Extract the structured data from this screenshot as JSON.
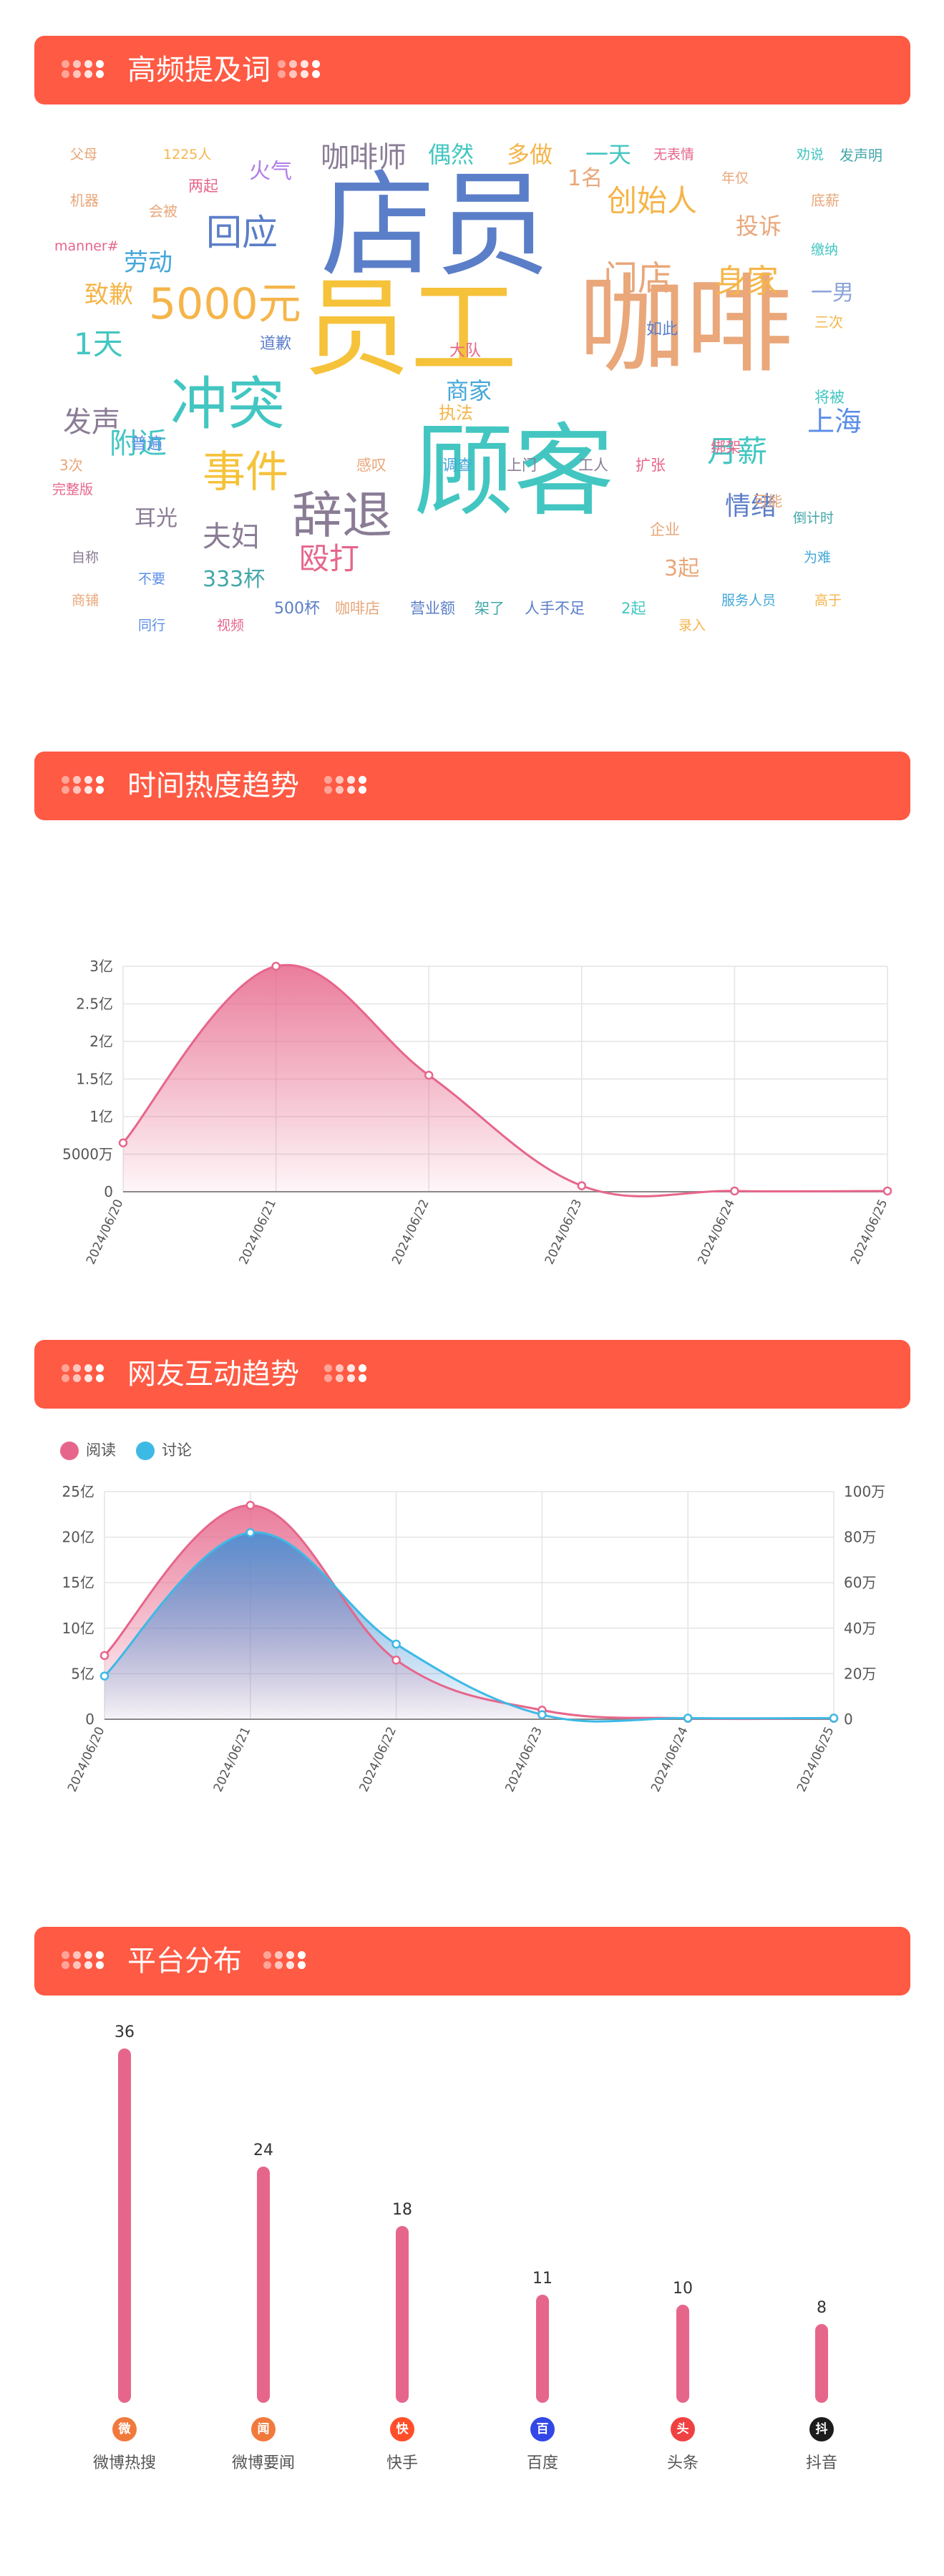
{
  "colors": {
    "header": "#ff5a44",
    "pink": "#e6668b",
    "blue": "#3db9e6"
  },
  "sections": {
    "wordcloud_title": "高频提及词",
    "trend_title": "时间热度趋势",
    "interaction_title": "网友互动趋势",
    "platform_title": "平台分布"
  },
  "wordcloud": {
    "words": [
      {
        "text": "店员",
        "color": "#5b7ec8"
      },
      {
        "text": "员工",
        "color": "#f5c23a"
      },
      {
        "text": "咖啡",
        "color": "#e9a77a"
      },
      {
        "text": "顾客",
        "color": "#43c6c1"
      },
      {
        "text": "冲突",
        "color": "#43c6c1"
      },
      {
        "text": "5000元",
        "color": "#f5b54a"
      },
      {
        "text": "辞退",
        "color": "#8a7c95"
      },
      {
        "text": "事件",
        "color": "#f5c23a"
      },
      {
        "text": "回应",
        "color": "#5b7ec8"
      },
      {
        "text": "门店",
        "color": "#e9a77a"
      },
      {
        "text": "身家",
        "color": "#f5b54a"
      },
      {
        "text": "创始人",
        "color": "#f5b54a"
      },
      {
        "text": "咖啡师",
        "color": "#8a7c95"
      },
      {
        "text": "月薪",
        "color": "#43c6c1"
      },
      {
        "text": "上海",
        "color": "#5b8ee8"
      },
      {
        "text": "殴打",
        "color": "#e6668b"
      },
      {
        "text": "夫妇",
        "color": "#8a7c95"
      },
      {
        "text": "附近",
        "color": "#43c6c1"
      },
      {
        "text": "1天",
        "color": "#43c6c1"
      },
      {
        "text": "发声",
        "color": "#8a7c95"
      },
      {
        "text": "致歉",
        "color": "#f5b54a"
      },
      {
        "text": "劳动",
        "color": "#43a7d8"
      },
      {
        "text": "商家",
        "color": "#43a7d8"
      },
      {
        "text": "情绪",
        "color": "#5b7ec8"
      },
      {
        "text": "偶然",
        "color": "#43c6c1"
      },
      {
        "text": "多做",
        "color": "#f5b54a"
      },
      {
        "text": "一天",
        "color": "#43c6c1"
      },
      {
        "text": "1名",
        "color": "#e9a77a"
      },
      {
        "text": "投诉",
        "color": "#e9a77a"
      },
      {
        "text": "火气",
        "color": "#b07ee8"
      },
      {
        "text": "333杯",
        "color": "#43a7a8"
      },
      {
        "text": "一男",
        "color": "#8aa3d8"
      },
      {
        "text": "3起",
        "color": "#e9a77a"
      },
      {
        "text": "耳光",
        "color": "#8a7c95"
      },
      {
        "text": "父母",
        "color": "#e9a77a"
      },
      {
        "text": "1225人",
        "color": "#f5b54a"
      },
      {
        "text": "无表情",
        "color": "#e6668b"
      },
      {
        "text": "劝说",
        "color": "#43c6c1"
      },
      {
        "text": "发声明",
        "color": "#43a7a8"
      },
      {
        "text": "机器",
        "color": "#e9a77a"
      },
      {
        "text": "两起",
        "color": "#e6668b"
      },
      {
        "text": "年仅",
        "color": "#e9a77a"
      },
      {
        "text": "底薪",
        "color": "#e9a77a"
      },
      {
        "text": "会被",
        "color": "#e9a77a"
      },
      {
        "text": "manner#",
        "color": "#e6668b"
      },
      {
        "text": "缴纳",
        "color": "#43c6c1"
      },
      {
        "text": "三次",
        "color": "#f5b54a"
      },
      {
        "text": "道歉",
        "color": "#5b7ec8"
      },
      {
        "text": "大队",
        "color": "#e6668b"
      },
      {
        "text": "如此",
        "color": "#5b7ec8"
      },
      {
        "text": "执法",
        "color": "#f5b54a"
      },
      {
        "text": "将被",
        "color": "#43c6c1"
      },
      {
        "text": "普遍",
        "color": "#5b8ee8"
      },
      {
        "text": "绑架",
        "color": "#e6668b"
      },
      {
        "text": "3次",
        "color": "#e9a77a"
      },
      {
        "text": "感叹",
        "color": "#e9a77a"
      },
      {
        "text": "调查",
        "color": "#43a7d8"
      },
      {
        "text": "上门",
        "color": "#8a7c95"
      },
      {
        "text": "工人",
        "color": "#8a7c95"
      },
      {
        "text": "扩张",
        "color": "#e6668b"
      },
      {
        "text": "完整版",
        "color": "#e6668b"
      },
      {
        "text": "可能",
        "color": "#e9a77a"
      },
      {
        "text": "倒计时",
        "color": "#43a7a8"
      },
      {
        "text": "企业",
        "color": "#e9a77a"
      },
      {
        "text": "自称",
        "color": "#8a7c95"
      },
      {
        "text": "为难",
        "color": "#43a7d8"
      },
      {
        "text": "不要",
        "color": "#5b8ee8"
      },
      {
        "text": "商铺",
        "color": "#e9a77a"
      },
      {
        "text": "500杯",
        "color": "#5b7ec8"
      },
      {
        "text": "咖啡店",
        "color": "#e9a77a"
      },
      {
        "text": "营业额",
        "color": "#5b7ec8"
      },
      {
        "text": "架了",
        "color": "#43a7a8"
      },
      {
        "text": "人手不足",
        "color": "#5b7ec8"
      },
      {
        "text": "2起",
        "color": "#43c6c1"
      },
      {
        "text": "服务人员",
        "color": "#43a7d8"
      },
      {
        "text": "高于",
        "color": "#f5b54a"
      },
      {
        "text": "同行",
        "color": "#5b8ee8"
      },
      {
        "text": "视频",
        "color": "#e6668b"
      },
      {
        "text": "录入",
        "color": "#f5b54a"
      }
    ]
  },
  "chart_data": [
    {
      "type": "area",
      "x": [
        "2024/06/20",
        "2024/06/21",
        "2024/06/22",
        "2024/06/23",
        "2024/06/24",
        "2024/06/25"
      ],
      "series": [
        {
          "values": [
            65000000,
            300000000,
            155000000,
            8000000,
            1000000,
            1000000
          ]
        }
      ],
      "y_ticks": [
        "0",
        "5000万",
        "1亿",
        "1.5亿",
        "2亿",
        "2.5亿",
        "3亿"
      ],
      "ylim": [
        0,
        300000000
      ],
      "grid": true
    },
    {
      "type": "area",
      "x": [
        "2024/06/20",
        "2024/06/21",
        "2024/06/22",
        "2024/06/23",
        "2024/06/24",
        "2024/06/25"
      ],
      "series": [
        {
          "name": "阅读",
          "axis": "left",
          "values": [
            700000000,
            2350000000,
            650000000,
            100000000,
            10000000,
            10000000
          ]
        },
        {
          "name": "讨论",
          "axis": "right",
          "values": [
            190000,
            820000,
            330000,
            20000,
            5000,
            5000
          ]
        }
      ],
      "y_ticks_left": [
        "0",
        "5亿",
        "10亿",
        "15亿",
        "20亿",
        "25亿"
      ],
      "y_ticks_right": [
        "0",
        "20万",
        "40万",
        "60万",
        "80万",
        "100万"
      ],
      "ylim_left": [
        0,
        2500000000
      ],
      "ylim_right": [
        0,
        1000000
      ],
      "legend": "top-left",
      "grid": true
    },
    {
      "type": "bar",
      "categories": [
        "微博热搜",
        "微博要闻",
        "快手",
        "百度",
        "头条",
        "抖音"
      ],
      "values": [
        36,
        24,
        18,
        11,
        10,
        8
      ],
      "ylim": [
        0,
        36
      ]
    }
  ],
  "platforms": [
    {
      "label": "微博热搜",
      "icon": "weibo-icon",
      "glyph": "微",
      "color": "#f07a3c"
    },
    {
      "label": "微博要闻",
      "icon": "weibo-news-icon",
      "glyph": "闻",
      "color": "#f07a3c"
    },
    {
      "label": "快手",
      "icon": "kuaishou-icon",
      "glyph": "快",
      "color": "#ff4f2a"
    },
    {
      "label": "百度",
      "icon": "baidu-icon",
      "glyph": "百",
      "color": "#3347e6"
    },
    {
      "label": "头条",
      "icon": "toutiao-icon",
      "glyph": "头",
      "color": "#f04142"
    },
    {
      "label": "抖音",
      "icon": "douyin-icon",
      "glyph": "抖",
      "color": "#1c1c1c"
    }
  ]
}
